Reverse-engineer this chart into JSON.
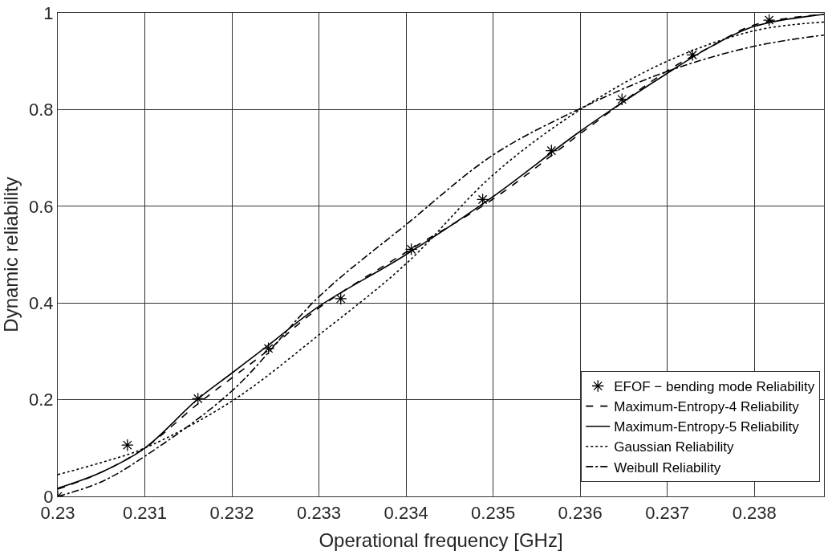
{
  "chart_data": {
    "type": "line",
    "xlabel": "Operational frequency [GHz]",
    "ylabel": "Dynamic reliability",
    "xlim": [
      0.23,
      0.2388
    ],
    "xticks": [
      0.23,
      0.231,
      0.232,
      0.233,
      0.234,
      0.235,
      0.236,
      0.237,
      0.238
    ],
    "ylim": [
      0,
      1
    ],
    "yticks": [
      0,
      0.2,
      0.4,
      0.6,
      0.8,
      1
    ],
    "grid": true,
    "legend": "bottom right",
    "series": [
      {
        "name": "EFOF − bending mode Reliability",
        "type": "scatter",
        "marker": "cross",
        "color": "#000000",
        "x": [
          0.23,
          0.2308,
          0.23161,
          0.23242,
          0.23325,
          0.23406,
          0.23488,
          0.23567,
          0.23648,
          0.23729,
          0.23817
        ],
        "values": [
          0,
          0.106,
          0.202,
          0.306,
          0.409,
          0.511,
          0.614,
          0.715,
          0.821,
          0.913,
          0.985
        ]
      },
      {
        "name": "Maximum-Entropy-4 Reliability",
        "line_style": "dashed",
        "color": "#000000",
        "x": [
          0.23,
          0.2305,
          0.231,
          0.2316,
          0.232,
          0.2324,
          0.233,
          0.234,
          0.235,
          0.236,
          0.237,
          0.2375,
          0.238,
          0.2388
        ],
        "values": [
          0.015,
          0.05,
          0.1,
          0.19,
          0.245,
          0.3,
          0.39,
          0.505,
          0.615,
          0.75,
          0.88,
          0.93,
          0.975,
          0.997
        ]
      },
      {
        "name": "Maximum-Entropy-5 Reliability",
        "line_style": "solid",
        "color": "#000000",
        "x": [
          0.23,
          0.2305,
          0.231,
          0.2316,
          0.232,
          0.2324,
          0.233,
          0.234,
          0.235,
          0.236,
          0.237,
          0.2375,
          0.238,
          0.2388
        ],
        "values": [
          0.017,
          0.05,
          0.1,
          0.2,
          0.255,
          0.31,
          0.393,
          0.5,
          0.62,
          0.755,
          0.875,
          0.93,
          0.972,
          0.997
        ]
      },
      {
        "name": "Gaussian Reliability",
        "line_style": "dotted",
        "color": "#000000",
        "x": [
          0.23,
          0.2305,
          0.231,
          0.232,
          0.233,
          0.234,
          0.235,
          0.236,
          0.237,
          0.238,
          0.2388
        ],
        "values": [
          0.045,
          0.07,
          0.1,
          0.197,
          0.334,
          0.481,
          0.665,
          0.8,
          0.9,
          0.963,
          0.981
        ]
      },
      {
        "name": "Weibull Reliability",
        "line_style": "dashdot",
        "color": "#000000",
        "x": [
          0.23,
          0.2305,
          0.231,
          0.232,
          0.233,
          0.234,
          0.235,
          0.236,
          0.237,
          0.238,
          0.2388
        ],
        "values": [
          0,
          0.03,
          0.083,
          0.218,
          0.413,
          0.562,
          0.706,
          0.802,
          0.879,
          0.931,
          0.954
        ]
      }
    ]
  }
}
